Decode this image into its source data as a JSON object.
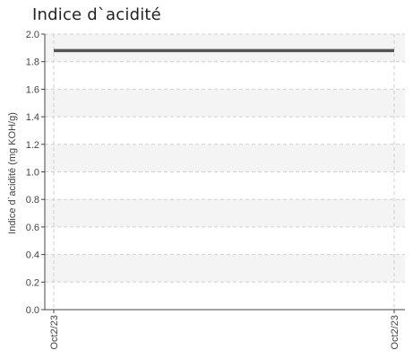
{
  "chart_data": {
    "type": "line",
    "title": "Indice d`acidité",
    "ylabel": "Indice d`acidité (mg KOH/g)",
    "xlabel": "",
    "x": [
      "Oct2/23",
      "Oct2/23"
    ],
    "series": [
      {
        "values": [
          1.88,
          1.88
        ]
      }
    ],
    "yticks": [
      "0.0",
      "0.2",
      "0.4",
      "0.6",
      "0.8",
      "1.0",
      "1.2",
      "1.4",
      "1.6",
      "1.8",
      "2.0"
    ],
    "ylim": [
      0,
      2.0
    ],
    "grid": true,
    "legend": "none"
  },
  "colors": {
    "line": "#555555",
    "band": "#f4f4f4",
    "grid": "#cfcfcf",
    "axis": "#444444",
    "text": "#444444"
  }
}
